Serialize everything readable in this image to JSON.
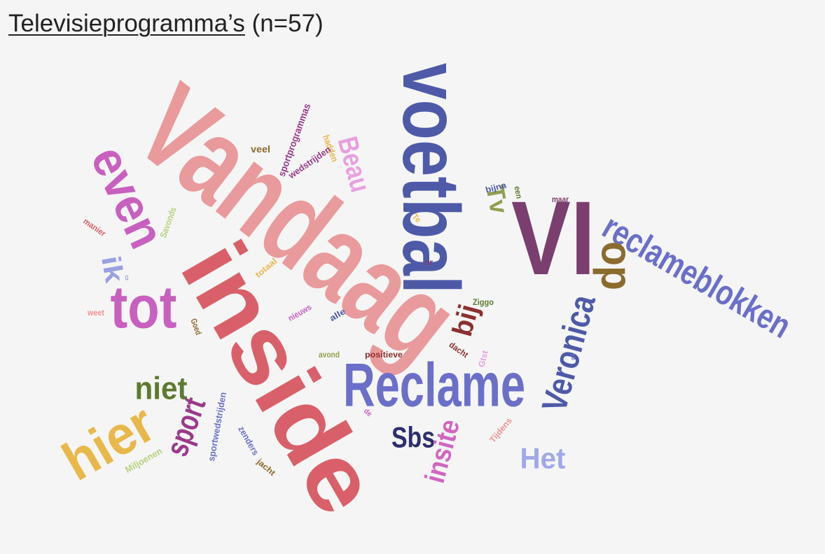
{
  "title": "Televisieprogramma’s",
  "subtitle": "(n=57)",
  "words": [
    "Vandaag",
    "inside",
    "voetbal",
    "VI",
    "reclameblokken",
    "op",
    "Veronica",
    "Reclame",
    "even",
    "tot",
    "ik",
    "hier",
    "niet",
    "sport",
    "Sbs",
    "insite",
    "Het",
    "Beau",
    "Tv",
    "bij",
    "sportprogrammas",
    "hadden",
    "veel",
    "wedstrijden",
    "bijna",
    "een",
    "maar",
    "manier",
    "Savonds",
    "Te",
    "er",
    "totaal",
    "Ziggo",
    "weet",
    "Goed",
    "nieuws",
    "alle",
    "G",
    "avond",
    "positieve",
    "dacht",
    "Gtst",
    "ze",
    "de",
    "Tijdens",
    "sportwedstrijden",
    "zenders",
    "Miljoenen",
    "jacht"
  ]
}
